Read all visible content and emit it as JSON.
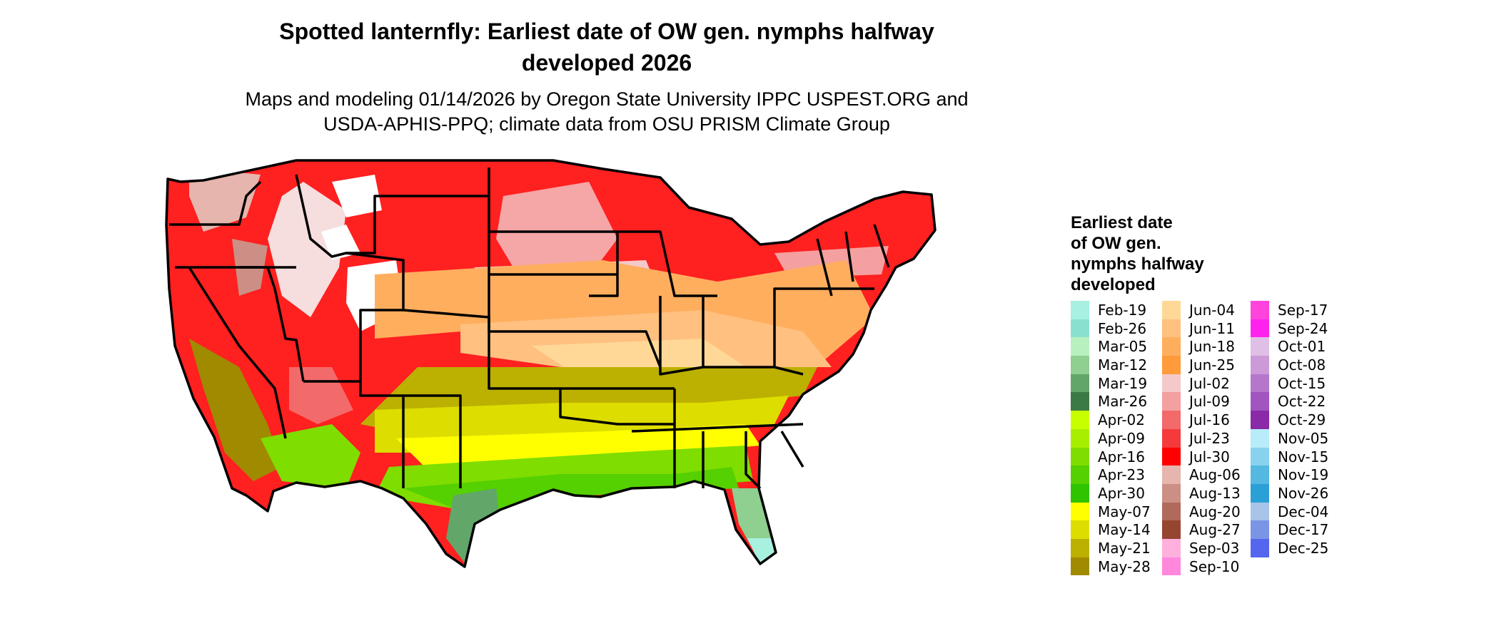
{
  "title": "Spotted lanternfly: Earliest date of OW gen. nymphs halfway developed 2026",
  "title_lines": [
    "Spotted lanternfly: Earliest date of OW gen. nymphs halfway",
    "developed 2026"
  ],
  "subtitle_lines": [
    "Maps and modeling 01/14/2026 by Oregon State University IPPC USPEST.ORG and",
    "USDA-APHIS-PPQ; climate data from OSU PRISM Climate Group"
  ],
  "legend": {
    "title_lines": [
      "Earliest date",
      "of OW gen.",
      "nymphs halfway",
      "developed"
    ],
    "columns": [
      [
        {
          "label": "Feb-19",
          "color": "#a8f0e0"
        },
        {
          "label": "Feb-26",
          "color": "#8ae0cf"
        },
        {
          "label": "Mar-05",
          "color": "#b8f0c0"
        },
        {
          "label": "Mar-12",
          "color": "#8fcf8f"
        },
        {
          "label": "Mar-19",
          "color": "#62a66a"
        },
        {
          "label": "Mar-26",
          "color": "#3b7a45"
        },
        {
          "label": "Apr-02",
          "color": "#c8ff00"
        },
        {
          "label": "Apr-09",
          "color": "#a8ee00"
        },
        {
          "label": "Apr-16",
          "color": "#7fdd00"
        },
        {
          "label": "Apr-23",
          "color": "#55d000"
        },
        {
          "label": "Apr-30",
          "color": "#2ec400"
        },
        {
          "label": "May-07",
          "color": "#ffff00"
        },
        {
          "label": "May-14",
          "color": "#dddd00"
        },
        {
          "label": "May-21",
          "color": "#bcb000"
        },
        {
          "label": "May-28",
          "color": "#a08a00"
        }
      ],
      [
        {
          "label": "Jun-04",
          "color": "#ffd898"
        },
        {
          "label": "Jun-11",
          "color": "#ffc080"
        },
        {
          "label": "Jun-18",
          "color": "#ffae5e"
        },
        {
          "label": "Jun-25",
          "color": "#ff9b3a"
        },
        {
          "label": "Jul-02",
          "color": "#f4c9c9"
        },
        {
          "label": "Jul-09",
          "color": "#f4a0a0"
        },
        {
          "label": "Jul-16",
          "color": "#f26a6a"
        },
        {
          "label": "Jul-23",
          "color": "#f43a3a"
        },
        {
          "label": "Jul-30",
          "color": "#ff0000"
        },
        {
          "label": "Aug-06",
          "color": "#e6b5ad"
        },
        {
          "label": "Aug-13",
          "color": "#cc8f85"
        },
        {
          "label": "Aug-20",
          "color": "#b06a5c"
        },
        {
          "label": "Aug-27",
          "color": "#964530"
        },
        {
          "label": "Sep-03",
          "color": "#ffb0dd"
        },
        {
          "label": "Sep-10",
          "color": "#ff88dd"
        }
      ],
      [
        {
          "label": "Sep-17",
          "color": "#ff44dd"
        },
        {
          "label": "Sep-24",
          "color": "#ff22ee"
        },
        {
          "label": "Oct-01",
          "color": "#e0bfe6"
        },
        {
          "label": "Oct-08",
          "color": "#cc99d9"
        },
        {
          "label": "Oct-15",
          "color": "#b577cc"
        },
        {
          "label": "Oct-22",
          "color": "#a055c0"
        },
        {
          "label": "Oct-29",
          "color": "#8a2aa8"
        },
        {
          "label": "Nov-05",
          "color": "#b8ecf8"
        },
        {
          "label": "Nov-15",
          "color": "#88d2ee"
        },
        {
          "label": "Nov-19",
          "color": "#55b8e0"
        },
        {
          "label": "Nov-26",
          "color": "#2aa0d6"
        },
        {
          "label": "Dec-04",
          "color": "#a8c4e8"
        },
        {
          "label": "Dec-17",
          "color": "#7a95e6"
        },
        {
          "label": "Dec-25",
          "color": "#5566ee"
        }
      ]
    ]
  }
}
